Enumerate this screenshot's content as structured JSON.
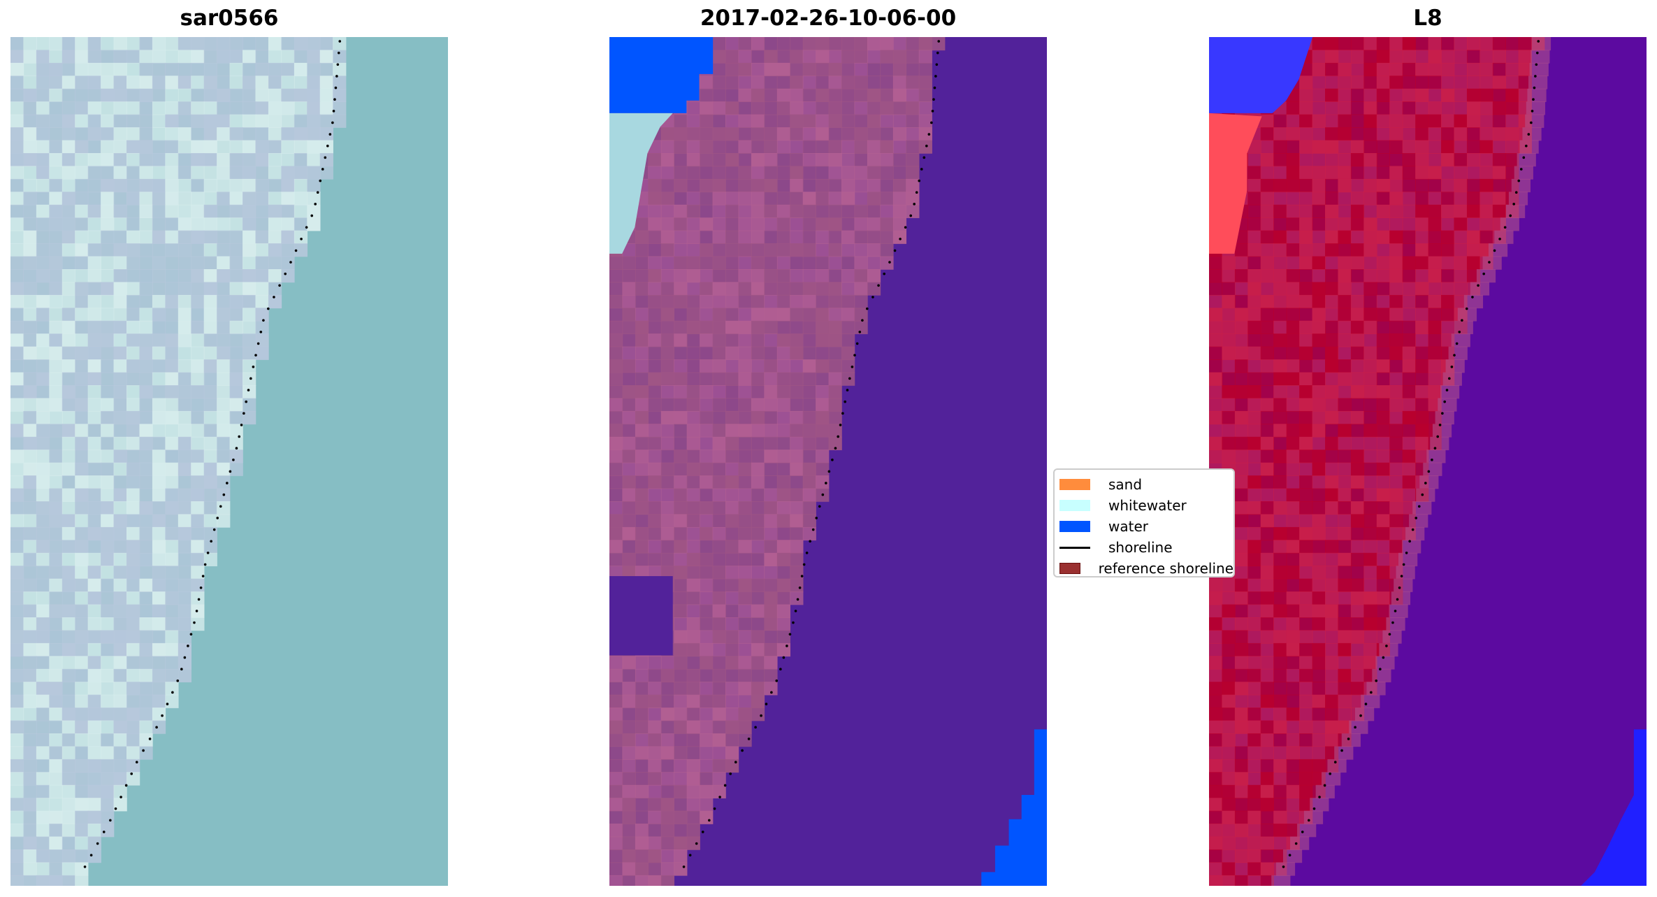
{
  "panels": [
    {
      "title": "sar0566",
      "kind": "rgb",
      "land": "#b7c8dc",
      "land2": "#d6ecec",
      "water": "#86bec4"
    },
    {
      "title": "2017-02-26-10-06-00",
      "kind": "classified",
      "land": "#a05585",
      "land2": "#b25f92",
      "water": "#52229a",
      "water_class": "#0055ff",
      "whitewater": "#a8d8e0"
    },
    {
      "title": "L8",
      "kind": "index",
      "land": "#c81e4a",
      "land2": "#b8002e",
      "water": "#5c0aa0",
      "water_class": "#2020ff"
    }
  ],
  "legend": {
    "placement": "center-right",
    "items": [
      {
        "label": "sand",
        "color": "#ff8c3c",
        "type": "patch"
      },
      {
        "label": "whitewater",
        "color": "#c8ffff",
        "type": "patch"
      },
      {
        "label": "water",
        "color": "#0055ff",
        "type": "patch"
      },
      {
        "label": "shoreline",
        "color": "#000000",
        "type": "line"
      },
      {
        "label": "reference shoreline",
        "color": "#9a3030",
        "type": "patch"
      }
    ]
  }
}
